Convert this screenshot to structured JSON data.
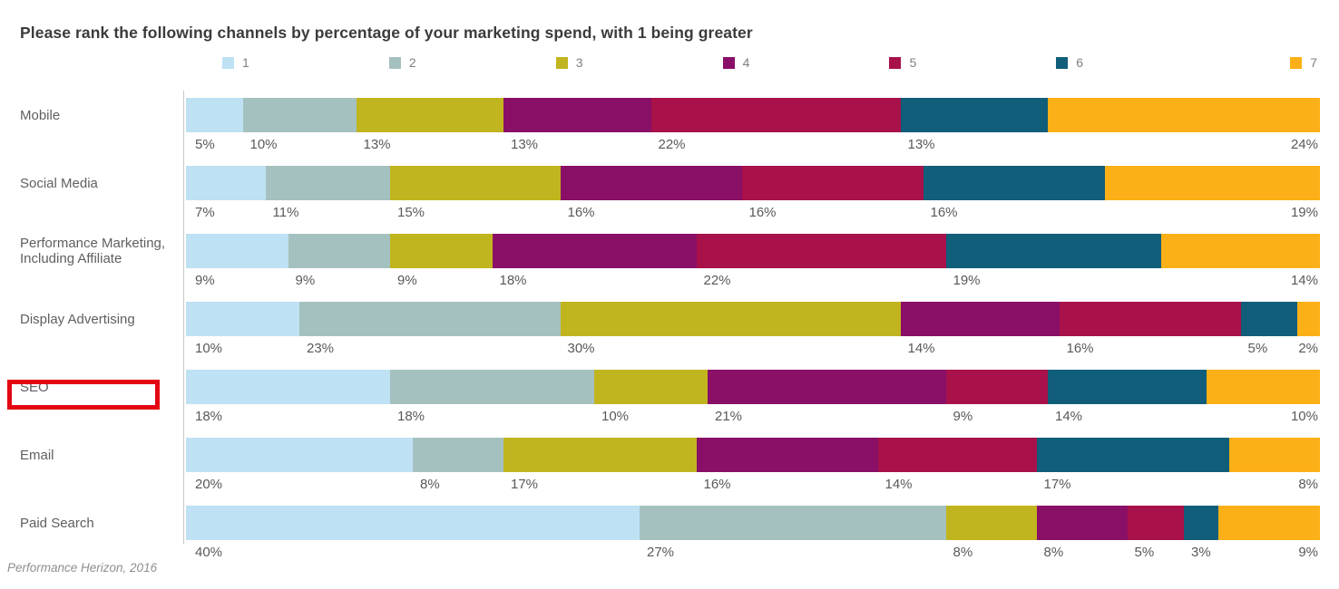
{
  "source": "Performance Herizon, 2016",
  "highlight": {
    "target": "SEO",
    "shape": "rectangle",
    "color": "#e30613"
  },
  "chart_data": {
    "type": "bar",
    "stacked": true,
    "orientation": "horizontal",
    "title": "Please rank the following channels by percentage of your marketing spend, with 1 being greater",
    "legend_position": "top",
    "legend": [
      "1",
      "2",
      "3",
      "4",
      "5",
      "6",
      "7"
    ],
    "xlim": [
      0,
      100
    ],
    "value_suffix": "%",
    "grid": false,
    "categories": [
      "Mobile",
      "Social Media",
      "Performance Marketing, Including Affiliate",
      "Display Advertising",
      "SEO",
      "Email",
      "Paid Search"
    ],
    "series": [
      {
        "name": "1",
        "color": "#bee1f4",
        "values": [
          5,
          7,
          9,
          10,
          18,
          20,
          40
        ]
      },
      {
        "name": "2",
        "color": "#a5c1bf",
        "values": [
          10,
          11,
          9,
          23,
          18,
          8,
          27
        ]
      },
      {
        "name": "3",
        "color": "#c1b51f",
        "values": [
          13,
          15,
          9,
          30,
          10,
          17,
          8
        ]
      },
      {
        "name": "4",
        "color": "#8a0f67",
        "values": [
          13,
          16,
          18,
          14,
          21,
          16,
          8
        ]
      },
      {
        "name": "5",
        "color": "#a8114a",
        "values": [
          22,
          16,
          22,
          16,
          9,
          14,
          5
        ]
      },
      {
        "name": "6",
        "color": "#115e7a",
        "values": [
          13,
          16,
          19,
          5,
          14,
          17,
          3
        ]
      },
      {
        "name": "7",
        "color": "#fcb017",
        "values": [
          24,
          19,
          14,
          2,
          10,
          8,
          9
        ]
      }
    ]
  }
}
